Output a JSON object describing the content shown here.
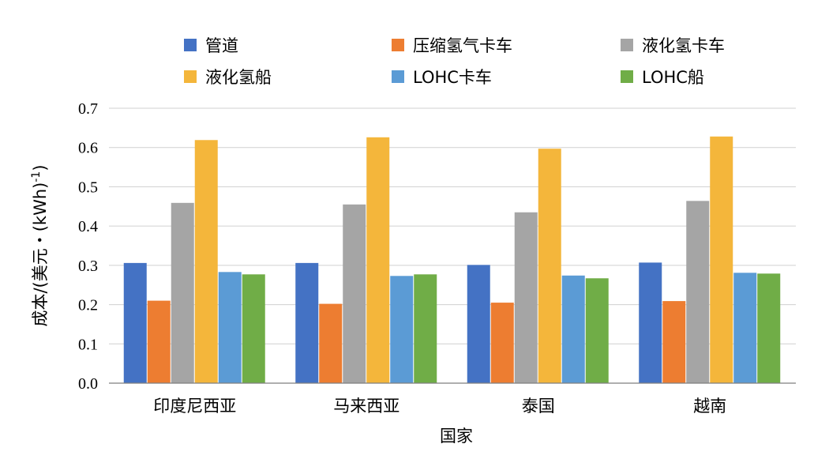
{
  "chart_data": {
    "type": "bar",
    "categories": [
      "印度尼西亚",
      "马来西亚",
      "泰国",
      "越南"
    ],
    "series": [
      {
        "name": "管道",
        "color": "#4472C4",
        "values": [
          0.306,
          0.306,
          0.301,
          0.307
        ]
      },
      {
        "name": "压缩氢气卡车",
        "color": "#ED7D31",
        "values": [
          0.21,
          0.202,
          0.205,
          0.209
        ]
      },
      {
        "name": "液化氢卡车",
        "color": "#A5A5A5",
        "values": [
          0.459,
          0.455,
          0.435,
          0.464
        ]
      },
      {
        "name": "液化氢船",
        "color": "#F4B63B",
        "values": [
          0.619,
          0.626,
          0.597,
          0.628
        ]
      },
      {
        "name": "LOHC卡车",
        "color": "#5B9BD5",
        "values": [
          0.283,
          0.273,
          0.274,
          0.281
        ]
      },
      {
        "name": "LOHC船",
        "color": "#70AD47",
        "values": [
          0.277,
          0.277,
          0.267,
          0.279
        ]
      }
    ],
    "xlabel": "国家",
    "ylabel_main": "成本/(美元・(kWh)",
    "ylabel_sup": "-1",
    "ylabel_close": ")",
    "ylim": [
      0,
      0.7
    ],
    "yticks": [
      "0.0",
      "0.1",
      "0.2",
      "0.3",
      "0.4",
      "0.5",
      "0.6",
      "0.7"
    ],
    "grid": true,
    "legend_position": "top"
  }
}
